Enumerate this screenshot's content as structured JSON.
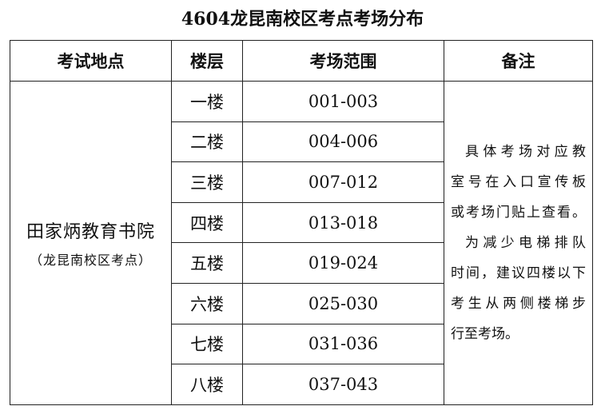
{
  "title": "4604龙昆南校区考点考场分布",
  "headers": [
    "考试地点",
    "楼层",
    "考场范围",
    "备注"
  ],
  "location": {
    "name": "田家炳教育书院",
    "sub": "（龙昆南校区考点）"
  },
  "rows": [
    {
      "floor": "一楼",
      "range": "001-003"
    },
    {
      "floor": "二楼",
      "range": "004-006"
    },
    {
      "floor": "三楼",
      "range": "007-012"
    },
    {
      "floor": "四楼",
      "range": "013-018"
    },
    {
      "floor": "五楼",
      "range": "019-024"
    },
    {
      "floor": "六楼",
      "range": "025-030"
    },
    {
      "floor": "七楼",
      "range": "031-036"
    },
    {
      "floor": "八楼",
      "range": "037-043"
    }
  ],
  "notes_lines": [
    "具体考场对应教",
    "室号在入口宣传板",
    "或考场门贴上查看。",
    "为减少电梯排队",
    "时间，建议四楼以下",
    "考生从两侧楼梯步",
    "行至考场。"
  ]
}
